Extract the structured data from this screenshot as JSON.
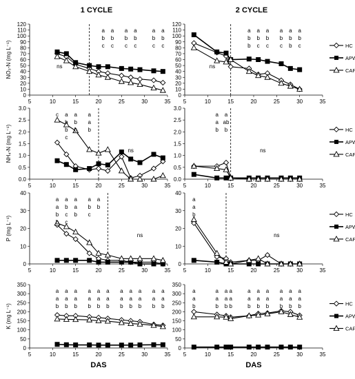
{
  "figure": {
    "column_titles": [
      "1 CYCLE",
      "2 CYCLE"
    ],
    "x_axis_label": "DAS",
    "x_ticks": [
      "5",
      "10",
      "15",
      "20",
      "25",
      "30",
      "35"
    ],
    "legend": [
      "HC",
      "APW",
      "CAPW"
    ],
    "colors": {
      "HC": "#000000",
      "APW": "#000000",
      "CAPW": "#000000",
      "dashed_line": "#000000"
    },
    "markers": {
      "HC": "open-diamond",
      "APW": "filled-square",
      "CAPW": "open-triangle"
    }
  },
  "chart_data": [
    {
      "type": "line",
      "panel": "NO3-N",
      "cycle": "1 CYCLE",
      "ylabel": "NO₃-N (mg L⁻¹)",
      "xlabel": "",
      "xlim": [
        5,
        35
      ],
      "ylim": [
        0,
        120
      ],
      "y_ticks": [
        "0",
        "10",
        "20",
        "30",
        "40",
        "50",
        "60",
        "70",
        "80",
        "90",
        "100",
        "110",
        "120"
      ],
      "x": [
        11,
        13,
        15,
        18,
        20,
        22,
        25,
        27,
        29,
        32,
        34
      ],
      "series": [
        {
          "name": "HC",
          "values": [
            70,
            65,
            52,
            45,
            40,
            37,
            33,
            30,
            27,
            25,
            21
          ]
        },
        {
          "name": "APW",
          "values": [
            73,
            70,
            55,
            50,
            48,
            48,
            45,
            44,
            43,
            41,
            40
          ]
        },
        {
          "name": "CAPW",
          "values": [
            65,
            58,
            48,
            40,
            34,
            30,
            23,
            21,
            18,
            12,
            8
          ]
        }
      ],
      "dashed_x": 18,
      "annotations": [
        {
          "x": 11.5,
          "lines": [
            "ns"
          ]
        },
        {
          "x": 21,
          "lines": [
            "a",
            "b",
            "c"
          ]
        },
        {
          "x": 23,
          "lines": [
            "a",
            "b",
            "c"
          ]
        },
        {
          "x": 26,
          "lines": [
            "a",
            "b",
            "c"
          ]
        },
        {
          "x": 28,
          "lines": [
            "a",
            "b",
            "c"
          ]
        },
        {
          "x": 32,
          "lines": [
            "a",
            "b",
            "c"
          ]
        },
        {
          "x": 34,
          "lines": [
            "a",
            "b",
            "c"
          ]
        }
      ]
    },
    {
      "type": "line",
      "panel": "NO3-N",
      "cycle": "2 CYCLE",
      "ylabel": "",
      "xlabel": "",
      "xlim": [
        5,
        35
      ],
      "ylim": [
        0,
        120
      ],
      "y_ticks": [
        "0",
        "10",
        "20",
        "30",
        "40",
        "50",
        "60",
        "70",
        "80",
        "90",
        "100",
        "110",
        "120"
      ],
      "x": [
        7,
        12,
        14,
        15,
        19,
        21,
        23,
        26,
        28,
        30
      ],
      "series": [
        {
          "name": "HC",
          "values": [
            88,
            72,
            66,
            48,
            45,
            35,
            37,
            25,
            18,
            10
          ]
        },
        {
          "name": "APW",
          "values": [
            102,
            73,
            71,
            60,
            61,
            60,
            57,
            53,
            45,
            43
          ]
        },
        {
          "name": "CAPW",
          "values": [
            80,
            58,
            56,
            60,
            40,
            33,
            30,
            20,
            15,
            10
          ]
        }
      ],
      "dashed_x": 15,
      "annotations": [
        {
          "x": 11,
          "lines": [
            "ns"
          ]
        },
        {
          "x": 19,
          "lines": [
            "a",
            "b",
            "b"
          ]
        },
        {
          "x": 21,
          "lines": [
            "a",
            "b",
            "c"
          ]
        },
        {
          "x": 23,
          "lines": [
            "a",
            "b",
            "c"
          ]
        },
        {
          "x": 26,
          "lines": [
            "a",
            "b",
            "c"
          ]
        },
        {
          "x": 28,
          "lines": [
            "a",
            "b",
            "b"
          ]
        },
        {
          "x": 30,
          "lines": [
            "a",
            "b",
            "c"
          ]
        }
      ]
    },
    {
      "type": "line",
      "panel": "NH4-N",
      "cycle": "1 CYCLE",
      "ylabel": "NH₄-N (mg L⁻¹)",
      "xlabel": "",
      "xlim": [
        5,
        35
      ],
      "ylim": [
        0,
        3
      ],
      "y_ticks": [
        "0.0",
        "0.5",
        "1.0",
        "1.5",
        "2.0",
        "2.5",
        "3.0"
      ],
      "x": [
        11,
        13,
        15,
        18,
        20,
        22,
        25,
        27,
        29,
        32,
        34
      ],
      "series": [
        {
          "name": "HC",
          "values": [
            1.55,
            1.05,
            0.55,
            0.4,
            0.45,
            0.35,
            0.95,
            0.05,
            0.15,
            0.45,
            0.75
          ]
        },
        {
          "name": "APW",
          "values": [
            0.78,
            0.62,
            0.4,
            0.45,
            0.65,
            0.6,
            1.15,
            0.85,
            0.7,
            1.05,
            0.9
          ]
        },
        {
          "name": "CAPW",
          "values": [
            2.5,
            2.3,
            2.05,
            1.25,
            1.1,
            1.25,
            0.35,
            0.0,
            0.0,
            0.0,
            0.15
          ]
        }
      ],
      "dashed_x": 20,
      "annotations": [
        {
          "x": 13,
          "lines": [
            "a",
            "b",
            "b",
            "c"
          ]
        },
        {
          "x": 15,
          "lines": [
            "a",
            "b",
            "b"
          ]
        },
        {
          "x": 18,
          "lines": [
            "a",
            "a",
            "b"
          ]
        },
        {
          "x": 27,
          "lines": [
            "ns"
          ]
        },
        {
          "x": 11,
          "lines": [
            "c"
          ]
        }
      ]
    },
    {
      "type": "line",
      "panel": "NH4-N",
      "cycle": "2 CYCLE",
      "ylabel": "",
      "xlabel": "",
      "xlim": [
        5,
        35
      ],
      "ylim": [
        0,
        3
      ],
      "y_ticks": [
        "0.0",
        "0.5",
        "1.0",
        "1.5",
        "2.0",
        "2.5",
        "3.0"
      ],
      "x": [
        7,
        12,
        14,
        15,
        19,
        21,
        23,
        26,
        28,
        30
      ],
      "series": [
        {
          "name": "HC",
          "values": [
            0.55,
            0.55,
            0.7,
            0.05,
            0.0,
            0.0,
            0.0,
            0.0,
            0.0,
            0.0
          ]
        },
        {
          "name": "APW",
          "values": [
            0.2,
            0.05,
            0.05,
            0.05,
            0.05,
            0.05,
            0.05,
            0.05,
            0.05,
            0.05
          ]
        },
        {
          "name": "CAPW",
          "values": [
            0.55,
            0.45,
            0.4,
            0.05,
            0.0,
            0.0,
            0.0,
            0.0,
            0.0,
            0.0
          ]
        }
      ],
      "dashed_x": 15,
      "annotations": [
        {
          "x": 12,
          "lines": [
            "a",
            "a",
            "b"
          ]
        },
        {
          "x": 14,
          "lines": [
            "a",
            "ab",
            "b"
          ]
        },
        {
          "x": 22,
          "lines": [
            "ns"
          ]
        }
      ]
    },
    {
      "type": "line",
      "panel": "P",
      "cycle": "1 CYCLE",
      "ylabel": "P (mg L⁻¹)",
      "xlabel": "",
      "xlim": [
        5,
        35
      ],
      "ylim": [
        0,
        40
      ],
      "y_ticks": [
        "0",
        "10",
        "20",
        "30",
        "40"
      ],
      "x": [
        11,
        13,
        15,
        18,
        20,
        22,
        25,
        27,
        29,
        32,
        34
      ],
      "series": [
        {
          "name": "HC",
          "values": [
            22,
            17,
            14,
            6,
            3,
            2,
            2,
            1,
            1,
            1,
            0
          ]
        },
        {
          "name": "APW",
          "values": [
            2,
            2,
            2,
            2,
            1,
            1,
            1,
            1,
            0,
            0,
            0
          ]
        },
        {
          "name": "CAPW",
          "values": [
            23,
            21,
            18,
            12,
            6,
            5,
            3,
            3,
            3,
            3,
            2
          ]
        }
      ],
      "dashed_x": 22,
      "annotations": [
        {
          "x": 11,
          "lines": [
            "a",
            "a",
            "b",
            "b"
          ]
        },
        {
          "x": 13,
          "lines": [
            "a",
            "b",
            "c",
            "c"
          ]
        },
        {
          "x": 15,
          "lines": [
            "a",
            "a",
            "b"
          ]
        },
        {
          "x": 18,
          "lines": [
            "a",
            "b",
            "c"
          ]
        },
        {
          "x": 20,
          "lines": [
            "a",
            "b"
          ]
        },
        {
          "x": 29,
          "lines": [
            "ns"
          ]
        }
      ]
    },
    {
      "type": "line",
      "panel": "P",
      "cycle": "2 CYCLE",
      "ylabel": "",
      "xlabel": "",
      "xlim": [
        5,
        35
      ],
      "ylim": [
        0,
        40
      ],
      "y_ticks": [
        "0",
        "10",
        "20",
        "30",
        "40"
      ],
      "x": [
        7,
        12,
        14,
        15,
        19,
        21,
        23,
        26,
        28,
        30
      ],
      "series": [
        {
          "name": "HC",
          "values": [
            23,
            4,
            3,
            1,
            2,
            2,
            5,
            0,
            0,
            0
          ]
        },
        {
          "name": "APW",
          "values": [
            2,
            1,
            0,
            0,
            0,
            0,
            0,
            0,
            0,
            0
          ]
        },
        {
          "name": "CAPW",
          "values": [
            25,
            6,
            1,
            0,
            2,
            3,
            0,
            0,
            0,
            0
          ]
        }
      ],
      "dashed_x": 14,
      "annotations": [
        {
          "x": 7,
          "lines": [
            "a",
            "a",
            "b"
          ]
        },
        {
          "x": 25,
          "lines": [
            "ns"
          ]
        }
      ]
    },
    {
      "type": "line",
      "panel": "K",
      "cycle": "1 CYCLE",
      "ylabel": "K (mg L⁻¹)",
      "xlabel": "DAS",
      "xlim": [
        5,
        35
      ],
      "ylim": [
        0,
        350
      ],
      "y_ticks": [
        "0",
        "50",
        "100",
        "150",
        "200",
        "250",
        "300",
        "350"
      ],
      "x": [
        11,
        13,
        15,
        18,
        20,
        22,
        25,
        27,
        29,
        32,
        34
      ],
      "series": [
        {
          "name": "HC",
          "values": [
            182,
            178,
            178,
            172,
            168,
            163,
            155,
            150,
            145,
            130,
            125
          ]
        },
        {
          "name": "APW",
          "values": [
            20,
            18,
            17,
            17,
            16,
            16,
            16,
            16,
            17,
            18,
            18
          ]
        },
        {
          "name": "CAPW",
          "values": [
            160,
            158,
            157,
            155,
            150,
            148,
            140,
            135,
            132,
            125,
            118
          ]
        }
      ],
      "annotations": [
        {
          "x": 11,
          "lines": [
            "a",
            "a",
            "b"
          ]
        },
        {
          "x": 13,
          "lines": [
            "a",
            "a",
            "b"
          ]
        },
        {
          "x": 15,
          "lines": [
            "a",
            "a",
            "b"
          ]
        },
        {
          "x": 18,
          "lines": [
            "a",
            "a",
            "b"
          ]
        },
        {
          "x": 20,
          "lines": [
            "a",
            "a",
            "b"
          ]
        },
        {
          "x": 22,
          "lines": [
            "a",
            "a",
            "b"
          ]
        },
        {
          "x": 25,
          "lines": [
            "a",
            "a",
            "b"
          ]
        },
        {
          "x": 27,
          "lines": [
            "a",
            "a",
            "b"
          ]
        },
        {
          "x": 29,
          "lines": [
            "a",
            "a",
            "b"
          ]
        },
        {
          "x": 32,
          "lines": [
            "a",
            "a",
            "b"
          ]
        },
        {
          "x": 34,
          "lines": [
            "a",
            "a",
            "b"
          ]
        }
      ]
    },
    {
      "type": "line",
      "panel": "K",
      "cycle": "2 CYCLE",
      "ylabel": "",
      "xlabel": "DAS",
      "xlim": [
        5,
        35
      ],
      "ylim": [
        0,
        350
      ],
      "y_ticks": [
        "0",
        "50",
        "100",
        "150",
        "200",
        "250",
        "300",
        "350"
      ],
      "x": [
        7,
        12,
        14,
        15,
        19,
        21,
        23,
        26,
        28,
        30
      ],
      "series": [
        {
          "name": "HC",
          "values": [
            200,
            185,
            178,
            170,
            178,
            190,
            193,
            205,
            200,
            180
          ]
        },
        {
          "name": "APW",
          "values": [
            5,
            5,
            5,
            5,
            5,
            5,
            5,
            5,
            5,
            5
          ]
        },
        {
          "name": "CAPW",
          "values": [
            172,
            172,
            170,
            162,
            178,
            182,
            188,
            200,
            185,
            170
          ]
        }
      ],
      "annotations": [
        {
          "x": 7,
          "lines": [
            "a",
            "a",
            "b"
          ]
        },
        {
          "x": 12,
          "lines": [
            "a",
            "a",
            "b"
          ]
        },
        {
          "x": 14,
          "lines": [
            "a",
            "a",
            "b"
          ]
        },
        {
          "x": 15,
          "lines": [
            "a",
            "a",
            "b"
          ]
        },
        {
          "x": 19,
          "lines": [
            "a",
            "a",
            "b"
          ]
        },
        {
          "x": 21,
          "lines": [
            "a",
            "a",
            "b"
          ]
        },
        {
          "x": 23,
          "lines": [
            "a",
            "a",
            "b"
          ]
        },
        {
          "x": 26,
          "lines": [
            "a",
            "a",
            "b"
          ]
        },
        {
          "x": 28,
          "lines": [
            "a",
            "a",
            "b"
          ]
        },
        {
          "x": 30,
          "lines": [
            "a",
            "a",
            "b"
          ]
        }
      ]
    }
  ]
}
